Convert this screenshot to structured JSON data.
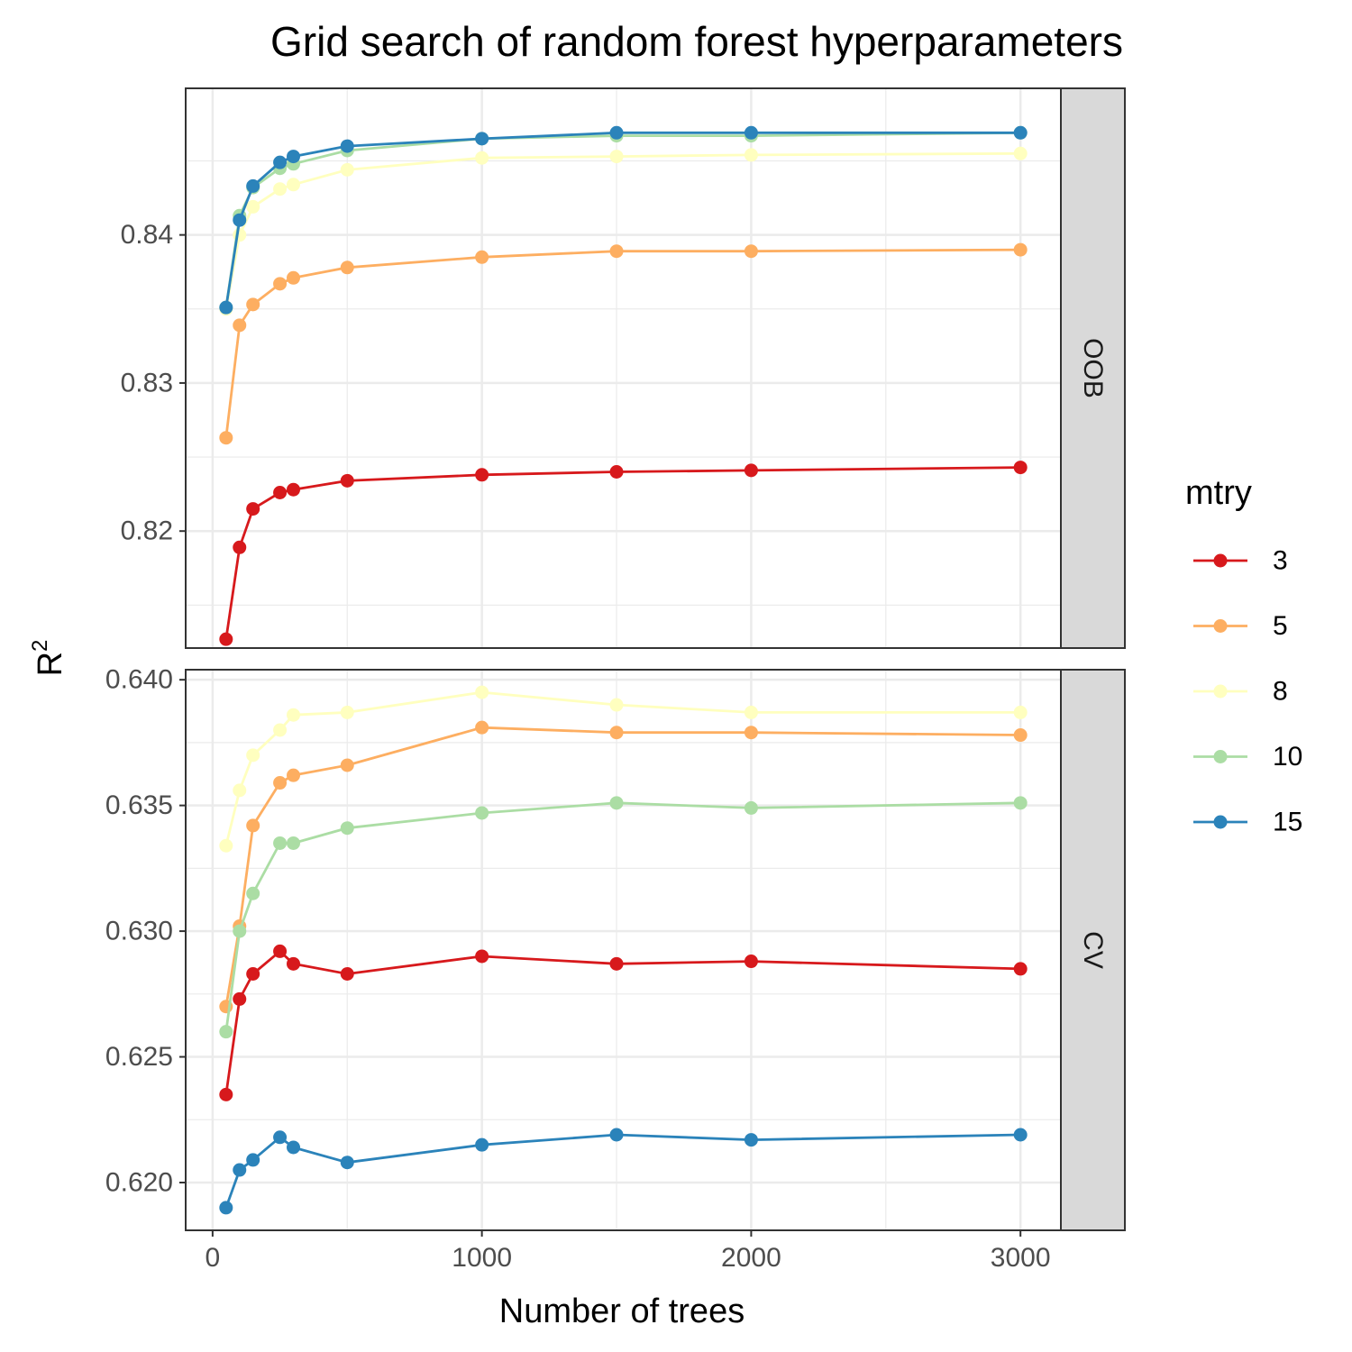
{
  "chart_data": {
    "type": "line",
    "title": "Grid search of random forest hyperparameters",
    "xlabel": "Number of trees",
    "ylabel": "R",
    "ylabel_superscript": "2",
    "x": [
      50,
      100,
      150,
      250,
      300,
      500,
      1000,
      1500,
      2000,
      3000
    ],
    "xlim": [
      -100,
      3150
    ],
    "xticks": [
      0,
      1000,
      2000,
      3000
    ],
    "legend": {
      "title": "mtry",
      "position": "right"
    },
    "grid": true,
    "colors": {
      "3": "#d7191c",
      "5": "#fdae61",
      "8": "#ffffbf",
      "10": "#abdda4",
      "15": "#2b83ba"
    },
    "panels": [
      {
        "label": "OOB",
        "ylim": [
          0.8121,
          0.8499
        ],
        "yticks": [
          0.82,
          0.83,
          0.84
        ],
        "ytick_labels": [
          "0.82",
          "0.83",
          "0.84"
        ],
        "series": [
          {
            "name": "3",
            "values": [
              0.8127,
              0.8189,
              0.8215,
              0.8226,
              0.8228,
              0.8234,
              0.8238,
              0.824,
              0.8241,
              0.8243
            ]
          },
          {
            "name": "5",
            "values": [
              0.8263,
              0.8339,
              0.8353,
              0.8367,
              0.8371,
              0.8378,
              0.8385,
              0.8389,
              0.8389,
              0.839
            ]
          },
          {
            "name": "8",
            "values": [
              0.835,
              0.84,
              0.8419,
              0.8431,
              0.8434,
              0.8444,
              0.8452,
              0.8453,
              0.8454,
              0.8455
            ]
          },
          {
            "name": "10",
            "values": [
              0.8351,
              0.8413,
              0.8432,
              0.8445,
              0.8448,
              0.8457,
              0.8465,
              0.8467,
              0.8467,
              0.8469
            ]
          },
          {
            "name": "15",
            "values": [
              0.8351,
              0.841,
              0.8433,
              0.8449,
              0.8453,
              0.846,
              0.8465,
              0.8469,
              0.8469,
              0.8469
            ]
          }
        ]
      },
      {
        "label": "CV",
        "ylim": [
          0.6181,
          0.6404
        ],
        "yticks": [
          0.62,
          0.625,
          0.63,
          0.635,
          0.64
        ],
        "ytick_labels": [
          "0.620",
          "0.625",
          "0.630",
          "0.635",
          "0.640"
        ],
        "series": [
          {
            "name": "3",
            "values": [
              0.6235,
              0.6273,
              0.6283,
              0.6292,
              0.6287,
              0.6283,
              0.629,
              0.6287,
              0.6288,
              0.6285
            ]
          },
          {
            "name": "5",
            "values": [
              0.627,
              0.6302,
              0.6342,
              0.6359,
              0.6362,
              0.6366,
              0.6381,
              0.6379,
              0.6379,
              0.6378
            ]
          },
          {
            "name": "8",
            "values": [
              0.6334,
              0.6356,
              0.637,
              0.638,
              0.6386,
              0.6387,
              0.6395,
              0.639,
              0.6387,
              0.6387
            ]
          },
          {
            "name": "10",
            "values": [
              0.626,
              0.63,
              0.6315,
              0.6335,
              0.6335,
              0.6341,
              0.6347,
              0.6351,
              0.6349,
              0.6351
            ]
          },
          {
            "name": "15",
            "values": [
              0.619,
              0.6205,
              0.6209,
              0.6218,
              0.6214,
              0.6208,
              0.6215,
              0.6219,
              0.6217,
              0.6219
            ]
          }
        ]
      }
    ]
  }
}
